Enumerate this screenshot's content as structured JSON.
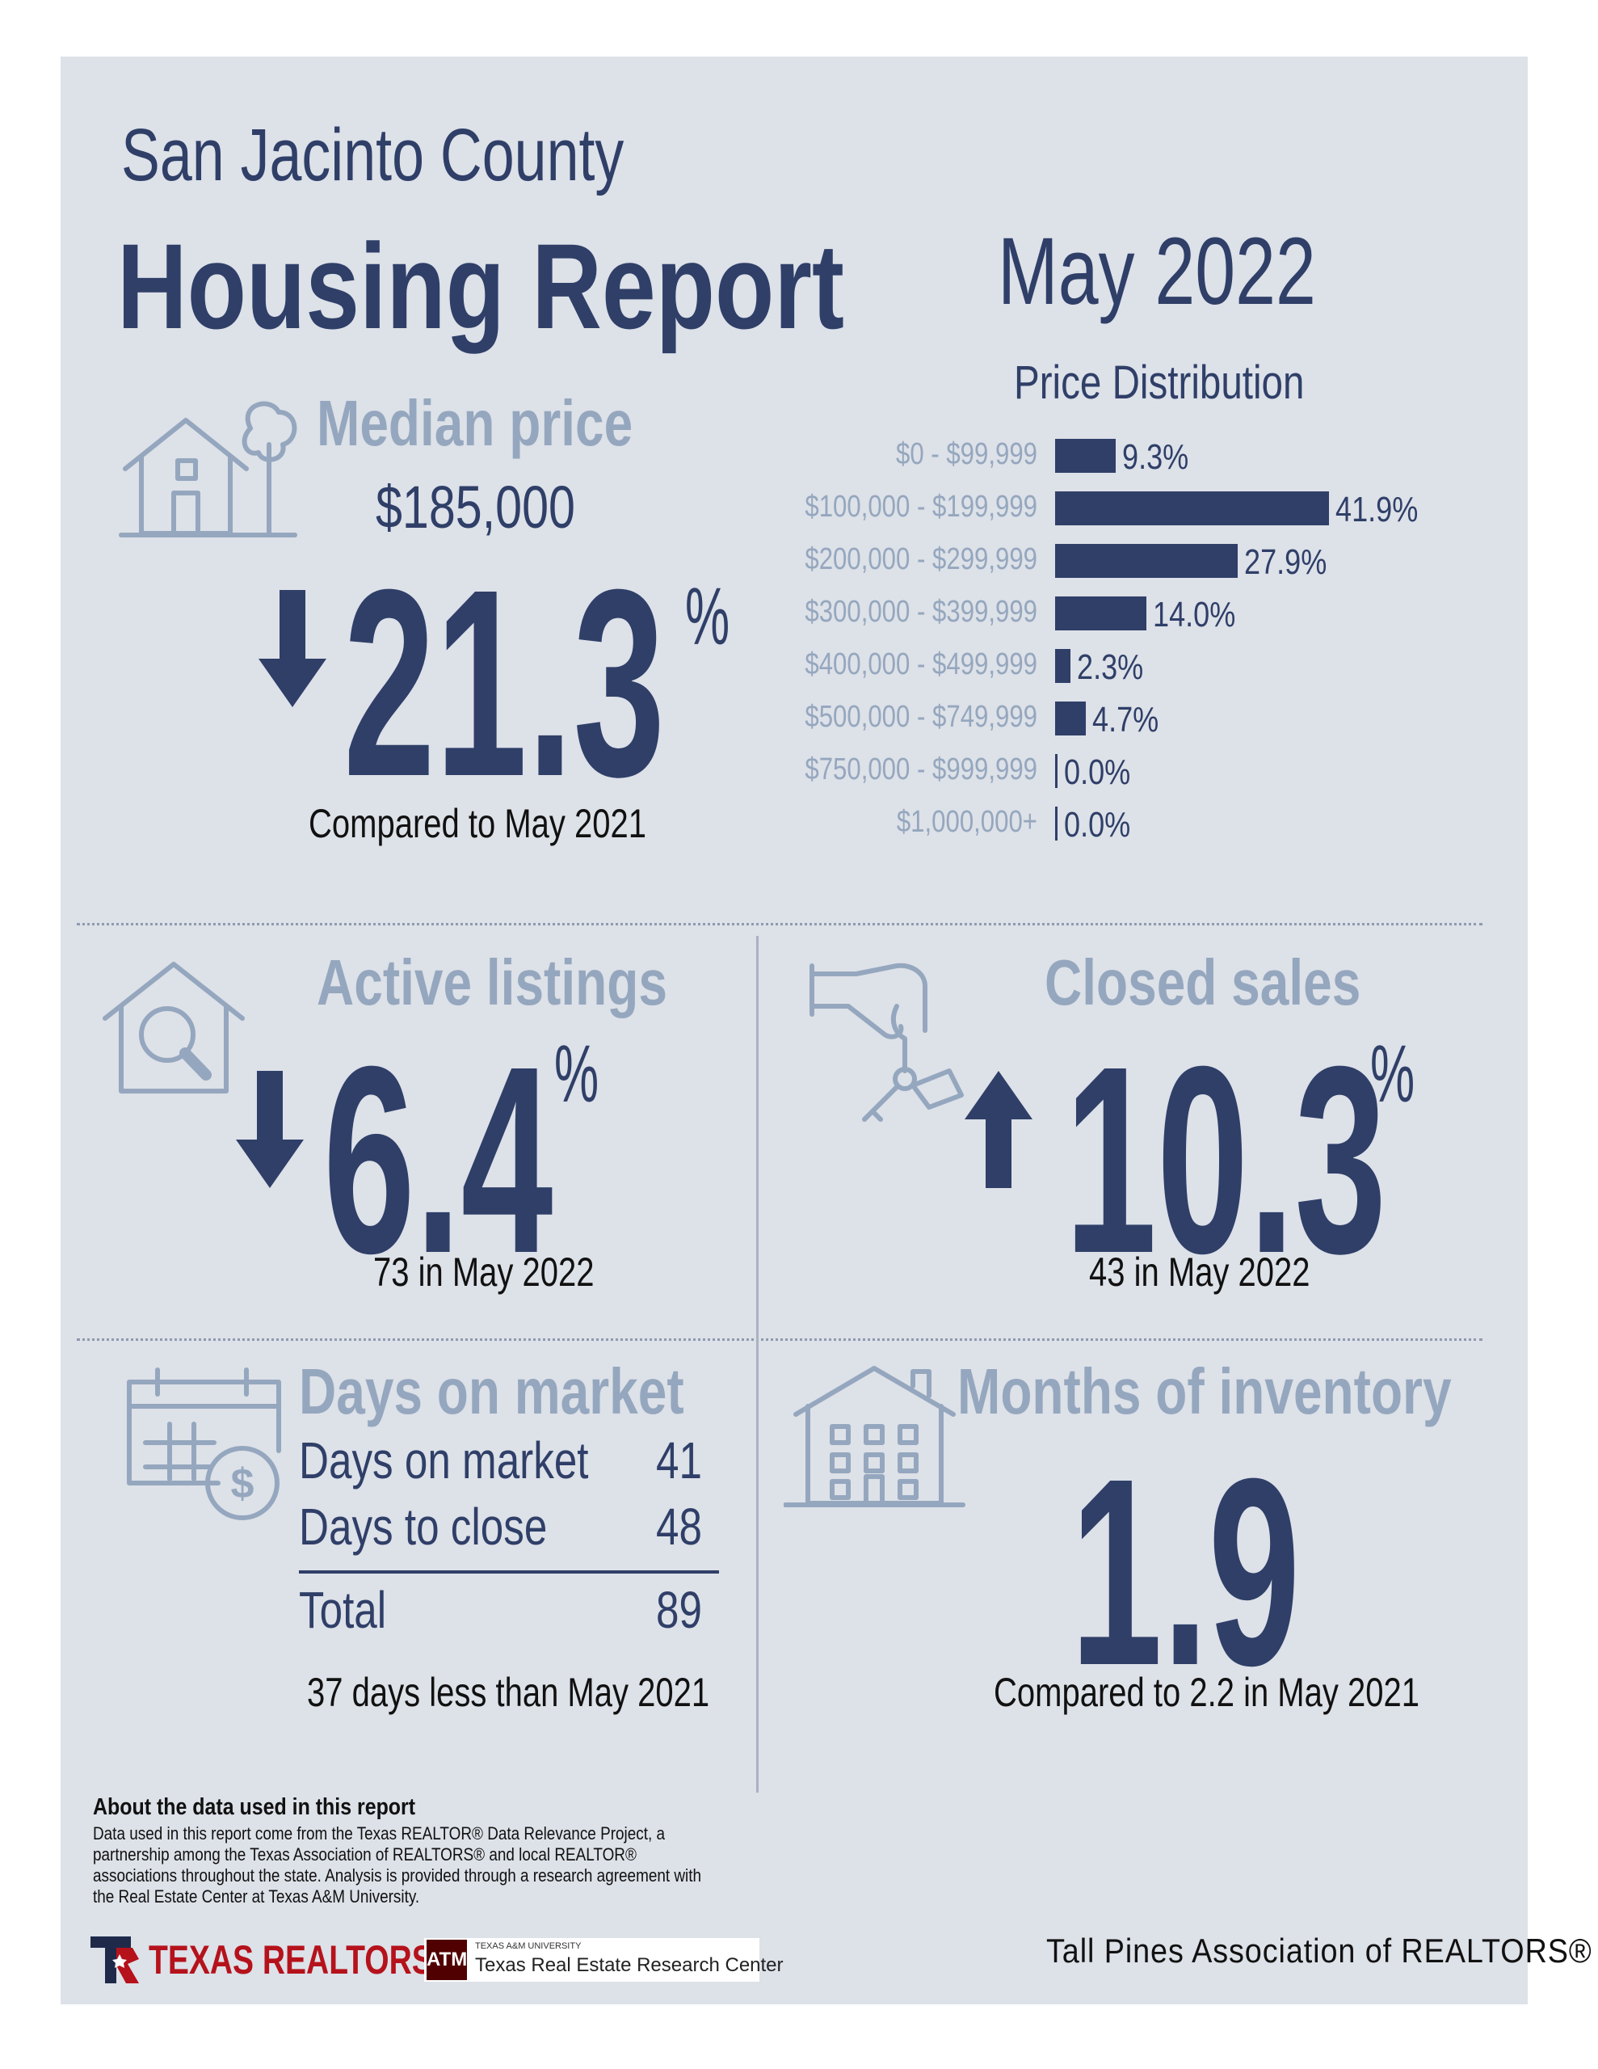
{
  "header": {
    "county": "San Jacinto County",
    "title": "Housing Report",
    "period": "May 2022"
  },
  "median_price": {
    "title": "Median price",
    "value": "$185,000",
    "change": "21.3",
    "percent_sign": "%",
    "direction": "down",
    "caption": "Compared to May 2021",
    "icon": "house-with-tree-icon"
  },
  "price_distribution": {
    "title": "Price Distribution",
    "bars": [
      {
        "label": "$0 - $99,999",
        "value": 9.3,
        "text": "9.3%"
      },
      {
        "label": "$100,000 - $199,999",
        "value": 41.9,
        "text": "41.9%"
      },
      {
        "label": "$200,000 - $299,999",
        "value": 27.9,
        "text": "27.9%"
      },
      {
        "label": "$300,000 - $399,999",
        "value": 14.0,
        "text": "14.0%"
      },
      {
        "label": "$400,000 - $499,999",
        "value": 2.3,
        "text": "2.3%"
      },
      {
        "label": "$500,000 - $749,999",
        "value": 4.7,
        "text": "4.7%"
      },
      {
        "label": "$750,000 - $999,999",
        "value": 0.0,
        "text": "0.0%"
      },
      {
        "label": "$1,000,000+",
        "value": 0.0,
        "text": "0.0%"
      }
    ],
    "bar_color": "#2f3f68"
  },
  "active_listings": {
    "title": "Active listings",
    "change": "6.4",
    "percent_sign": "%",
    "direction": "down",
    "caption": "73 in May 2022",
    "icon": "house-magnifier-icon"
  },
  "closed_sales": {
    "title": "Closed sales",
    "change": "10.3",
    "percent_sign": "%",
    "direction": "up",
    "caption": "43 in May 2022",
    "icon": "hand-with-keys-icon"
  },
  "days_on_market": {
    "title": "Days on market",
    "rows": [
      {
        "label": "Days on market",
        "value": "41"
      },
      {
        "label": "Days to close",
        "value": "48"
      }
    ],
    "total_label": "Total",
    "total_value": "89",
    "caption": "37 days less than May 2021",
    "icon": "calendar-dollar-icon"
  },
  "months_inventory": {
    "title": "Months of inventory",
    "value": "1.9",
    "caption": "Compared to 2.2 in May 2021",
    "icon": "apartment-building-icon"
  },
  "footer": {
    "about_title": "About the data used in this report",
    "about_text": "Data used in this report come from the Texas REALTOR® Data Relevance Project, a partnership among the Texas Association of REALTORS® and local REALTOR® associations throughout the state. Analysis is provided through a research agreement with the Real Estate Center at Texas A&M University.",
    "texas_realtors_logo": "TEXAS REALTORS",
    "tamu_small": "TEXAS A&M UNIVERSITY",
    "tamu_name": "Texas Real Estate Research Center",
    "association": "Tall Pines Association of REALTORS®"
  },
  "colors": {
    "navy": "#2f3f68",
    "muted": "#95a7be",
    "panel": "#dde1e8"
  }
}
